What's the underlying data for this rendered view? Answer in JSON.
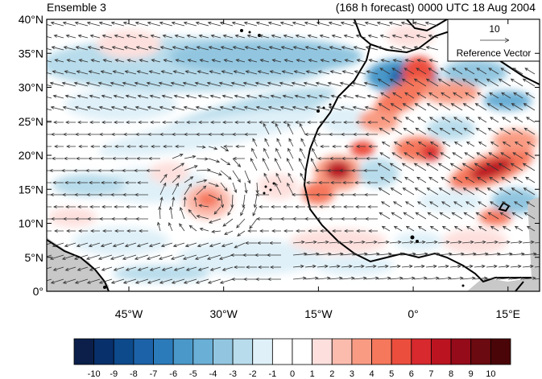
{
  "header": {
    "left_title": "Ensemble 3",
    "right_title": "(168 h forecast) 0000 UTC 18 Aug 2004"
  },
  "reference_vector": {
    "magnitude": "10",
    "label": "Reference Vector"
  },
  "axes": {
    "lat_ticks": [
      "40°N",
      "35°N",
      "30°N",
      "25°N",
      "20°N",
      "15°N",
      "10°N",
      "5°N",
      "0°"
    ],
    "lat_values": [
      40,
      35,
      30,
      25,
      20,
      15,
      10,
      5,
      0
    ],
    "lon_ticks": [
      "45°W",
      "30°W",
      "15°W",
      "0°",
      "15°E"
    ],
    "lon_values": [
      -45,
      -30,
      -15,
      0,
      15
    ],
    "lon_range": [
      -58,
      20
    ],
    "lat_range": [
      0,
      40
    ]
  },
  "colorbar": {
    "labels": [
      "-10",
      "-9",
      "-8",
      "-7",
      "-6",
      "-5",
      "-4",
      "-3",
      "-2",
      "-1",
      "0",
      "1",
      "2",
      "3",
      "4",
      "5",
      "6",
      "7",
      "8",
      "9",
      "10"
    ],
    "colors": [
      "#0b1f4a",
      "#08306b",
      "#0d4a8c",
      "#1c62a8",
      "#2b7bba",
      "#4a98c9",
      "#6aafd6",
      "#92c6e0",
      "#b8dceb",
      "#dff0f8",
      "#ffffff",
      "#ffffff",
      "#fde0dd",
      "#fbbcae",
      "#f99b83",
      "#f5775c",
      "#ec4e3d",
      "#d8292e",
      "#bb1420",
      "#950b1a",
      "#6b0a10",
      "#4a0508"
    ]
  },
  "map_colors": {
    "land_mask": "#c8c8c8",
    "coast": "#000000",
    "arrow": "#333333"
  }
}
